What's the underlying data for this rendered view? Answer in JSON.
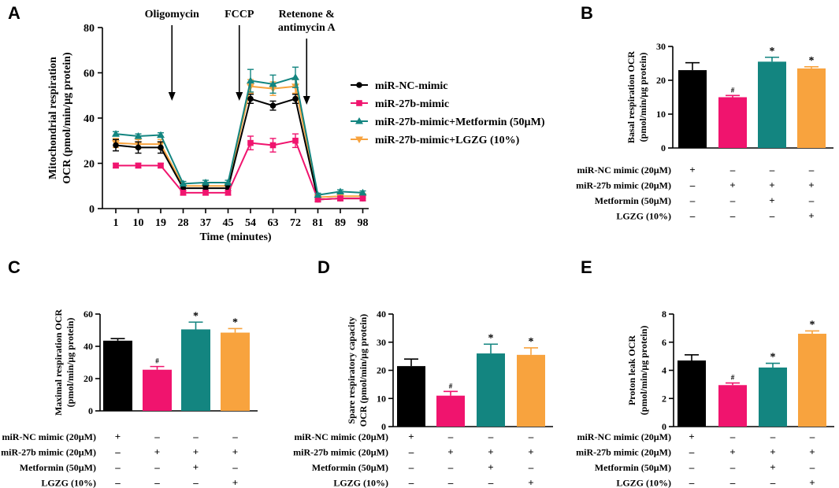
{
  "colors": {
    "black": "#000000",
    "pink": "#f0146e",
    "teal": "#138580",
    "orange": "#f8a33e"
  },
  "chart_data": [
    {
      "panel": "A",
      "type": "line",
      "xlabel": "Time (minutes)",
      "ylabel": [
        "Mitochondrial respiration",
        "OCR (pmol/min/µg protein)"
      ],
      "ylim": [
        0,
        80
      ],
      "yticks": [
        "0",
        "20",
        "40",
        "60",
        "80"
      ],
      "x": [
        "1",
        "10",
        "19",
        "28",
        "37",
        "45",
        "54",
        "63",
        "72",
        "81",
        "89",
        "98"
      ],
      "annotations": [
        {
          "lines": [
            "Oligomycin"
          ],
          "at_index": 2.5
        },
        {
          "lines": [
            "FCCP"
          ],
          "at_index": 5.5
        },
        {
          "lines": [
            "Retenone &",
            "antimycin A"
          ],
          "at_index": 8.5
        }
      ],
      "series": [
        {
          "name": "miR-NC-mimic",
          "marker": "circle",
          "color": "#000000",
          "values": [
            28,
            27,
            27,
            9,
            9,
            9,
            48.5,
            45.5,
            48.5,
            4,
            4.5,
            4.5
          ],
          "errors": [
            2.5,
            2.5,
            2.5,
            1,
            1,
            1,
            2,
            2,
            2,
            1,
            1,
            1
          ]
        },
        {
          "name": "miR-27b-mimic",
          "marker": "square",
          "color": "#f0146e",
          "values": [
            19,
            19,
            19,
            7,
            7,
            7,
            29,
            28,
            30,
            4,
            4.5,
            4.5
          ],
          "errors": [
            1,
            1,
            1,
            1,
            1,
            1,
            3,
            3,
            3,
            0.8,
            0.8,
            0.8
          ]
        },
        {
          "name": "miR-27b-mimic+Metformin (50µM)",
          "marker": "triangle-up",
          "color": "#138580",
          "values": [
            33,
            32,
            32.5,
            11,
            11.5,
            11.5,
            56.5,
            55,
            58,
            6,
            7.5,
            7
          ],
          "errors": [
            1,
            1,
            1,
            1,
            1,
            1,
            5,
            4,
            4.5,
            0.8,
            0.8,
            0.8
          ]
        },
        {
          "name": "miR-27b-mimic+LGZG (10%)",
          "marker": "triangle-down",
          "color": "#f8a33e",
          "values": [
            29,
            28.5,
            28.5,
            10,
            10,
            10,
            54,
            53,
            54,
            5,
            5.5,
            5.5
          ],
          "errors": [
            2,
            2,
            2,
            1,
            1,
            1,
            3,
            3,
            3,
            0.8,
            0.8,
            0.8
          ]
        }
      ]
    },
    {
      "panel": "B",
      "type": "bar",
      "ylabel": [
        "Basal respiration OCR",
        "(pmol/min/µg protein)"
      ],
      "ylim": [
        0,
        30
      ],
      "yticks": [
        "0",
        "10",
        "20",
        "30"
      ],
      "values": [
        23,
        15,
        25.5,
        23.5
      ],
      "errors": [
        2.2,
        0.5,
        1.3,
        0.5
      ],
      "marks": [
        "",
        "#",
        "*",
        "*"
      ]
    },
    {
      "panel": "C",
      "type": "bar",
      "ylabel": [
        "Maximal respiration OCR",
        "(pmol/min/µg protein)"
      ],
      "ylim": [
        0,
        60
      ],
      "yticks": [
        "0",
        "20",
        "40",
        "60"
      ],
      "values": [
        43.5,
        25.5,
        50.5,
        48.5
      ],
      "errors": [
        1.3,
        2,
        4.5,
        2.5
      ],
      "marks": [
        "",
        "#",
        "*",
        "*"
      ]
    },
    {
      "panel": "D",
      "type": "bar",
      "ylabel": [
        "Spare respiratory capacity",
        "OCR (pmol/min/µg protein)"
      ],
      "ylim": [
        0,
        40
      ],
      "yticks": [
        "0",
        "10",
        "20",
        "30",
        "40"
      ],
      "values": [
        21.5,
        11,
        26,
        25.5
      ],
      "errors": [
        2.5,
        1.5,
        3.3,
        2.5
      ],
      "marks": [
        "",
        "#",
        "*",
        "*"
      ]
    },
    {
      "panel": "E",
      "type": "bar",
      "ylabel": [
        "Proton leak OCR",
        "(pmol/min/µg protein)"
      ],
      "ylim": [
        0,
        8
      ],
      "yticks": [
        "0",
        "2",
        "4",
        "6",
        "8"
      ],
      "values": [
        4.7,
        2.95,
        4.2,
        6.6
      ],
      "errors": [
        0.4,
        0.15,
        0.3,
        0.2
      ],
      "marks": [
        "",
        "#",
        "*",
        "*"
      ]
    }
  ],
  "treatment_table": {
    "rows": [
      {
        "label": "miR-NC mimic (20µM)",
        "signs": [
          "+",
          "–",
          "–",
          "–"
        ]
      },
      {
        "label": "miR-27b mimic (20µM)",
        "signs": [
          "–",
          "+",
          "+",
          "+"
        ]
      },
      {
        "label": "Metformin (50µM)",
        "signs": [
          "–",
          "–",
          "+",
          "–"
        ]
      },
      {
        "label": "LGZG (10%)",
        "signs": [
          "–",
          "–",
          "–",
          "+"
        ]
      }
    ]
  }
}
